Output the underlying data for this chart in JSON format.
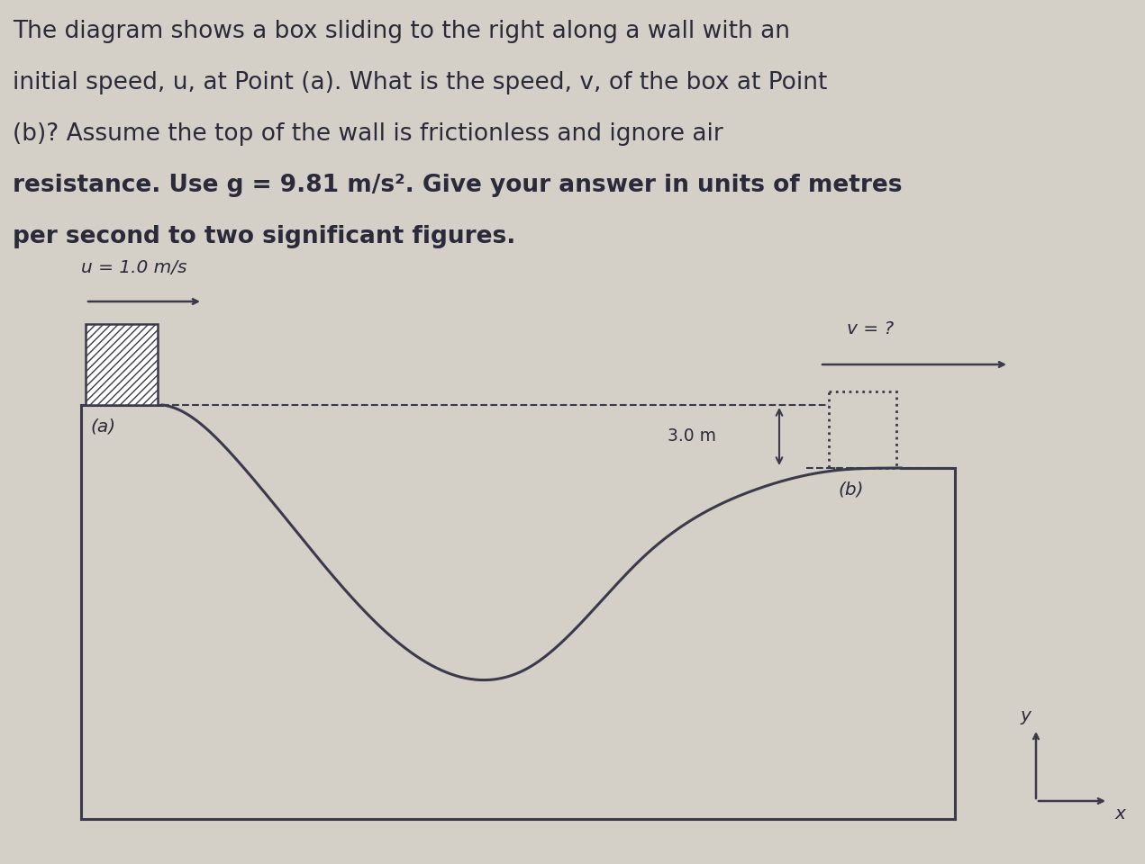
{
  "bg_color": "#d4d0c8",
  "text_color": "#2a2a3a",
  "wall_color": "#3a3a4a",
  "title_normal": [
    "The diagram shows a box sliding to the right along a wall with an",
    "initial speed, u, at Point (a). What is the speed, v, of the box at Point",
    "(b)? Assume the top of the wall is frictionless and ignore air"
  ],
  "title_bold": [
    "resistance. Use g = 9.81 m/s². Give your answer in units of metres",
    "per second to two significant figures."
  ],
  "u_label": "u = 1.0 m/s",
  "v_label": "v = ?",
  "height_label": "3.0 m",
  "point_a_label": "(a)",
  "point_b_label": "(b)",
  "x_axis_label": "x",
  "y_axis_label": "y",
  "title_fontsize": 19,
  "label_fontsize": 14.5
}
